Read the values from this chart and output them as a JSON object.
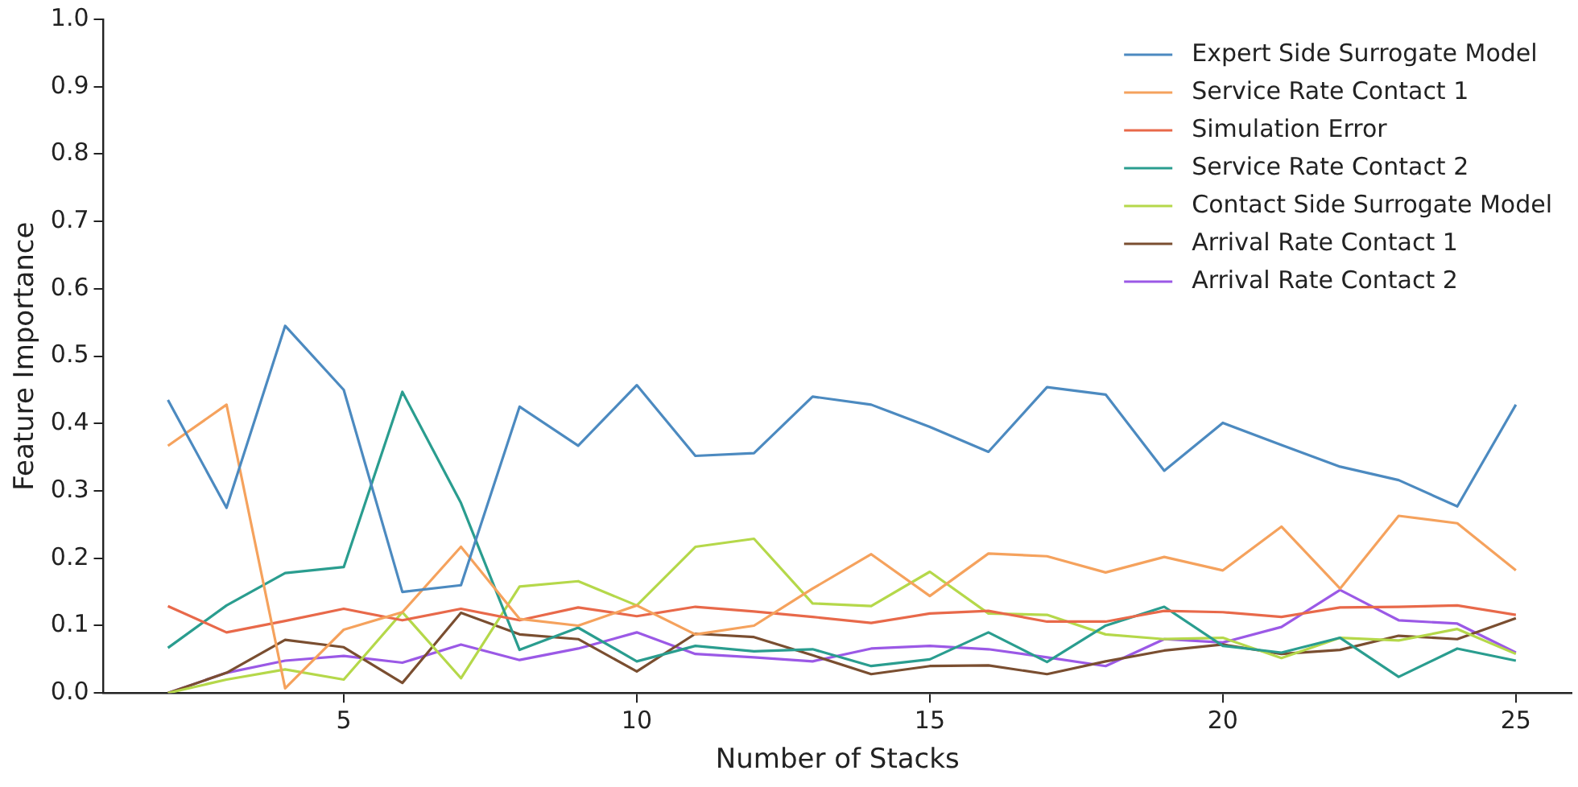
{
  "chart_data": {
    "type": "line",
    "xlabel": "Number of Stacks",
    "ylabel": "Feature Importance",
    "x": [
      2,
      3,
      4,
      5,
      6,
      7,
      8,
      9,
      10,
      11,
      12,
      13,
      14,
      15,
      16,
      17,
      18,
      19,
      20,
      21,
      22,
      23,
      24,
      25
    ],
    "xlim": [
      0.9,
      25.95
    ],
    "xticks": [
      5,
      10,
      15,
      20,
      25
    ],
    "ylim": [
      0,
      1
    ],
    "yticks": [
      {
        "value": 0,
        "label": "0.0"
      },
      0.1,
      0.2,
      0.3,
      0.4,
      0.5,
      0.6,
      0.7,
      0.8,
      0.9,
      {
        "value": 1,
        "label": "1.0"
      }
    ],
    "grid": false,
    "legend": "top right",
    "marker": "none",
    "line_style": "solid",
    "series": [
      {
        "name": "Expert Side Surrogate Model",
        "color": "#4c8ac0",
        "values": [
          0.435,
          0.275,
          0.545,
          0.45,
          0.15,
          0.16,
          0.425,
          0.367,
          0.457,
          0.352,
          0.356,
          0.44,
          0.428,
          0.395,
          0.358,
          0.454,
          0.443,
          0.33,
          0.401,
          0.368,
          0.336,
          0.316,
          0.277,
          0.428
        ]
      },
      {
        "name": "Service Rate Contact 1",
        "color": "#f5a25d",
        "values": [
          0.367,
          0.428,
          0.007,
          0.094,
          0.12,
          0.217,
          0.11,
          0.1,
          0.13,
          0.087,
          0.1,
          0.155,
          0.206,
          0.144,
          0.207,
          0.203,
          0.179,
          0.202,
          0.182,
          0.247,
          0.155,
          0.263,
          0.252,
          0.182
        ]
      },
      {
        "name": "Simulation Error",
        "color": "#e8694a",
        "values": [
          0.129,
          0.09,
          0.107,
          0.125,
          0.108,
          0.125,
          0.108,
          0.127,
          0.114,
          0.128,
          0.121,
          0.113,
          0.104,
          0.118,
          0.122,
          0.106,
          0.106,
          0.122,
          0.12,
          0.113,
          0.127,
          0.128,
          0.13,
          0.116
        ]
      },
      {
        "name": "Service Rate Contact 2",
        "color": "#2a9d8f",
        "values": [
          0.067,
          0.13,
          0.178,
          0.187,
          0.447,
          0.282,
          0.064,
          0.097,
          0.047,
          0.07,
          0.062,
          0.065,
          0.04,
          0.05,
          0.09,
          0.046,
          0.1,
          0.128,
          0.07,
          0.06,
          0.082,
          0.024,
          0.066,
          0.048
        ]
      },
      {
        "name": "Contact Side Surrogate Model",
        "color": "#b5d84a",
        "values": [
          0,
          0.02,
          0.035,
          0.02,
          0.12,
          0.022,
          0.158,
          0.166,
          0.13,
          0.217,
          0.229,
          0.133,
          0.129,
          0.18,
          0.118,
          0.116,
          0.087,
          0.08,
          0.082,
          0.052,
          0.082,
          0.078,
          0.095,
          0.058
        ]
      },
      {
        "name": "Arrival Rate Contact 1",
        "color": "#7a4e30",
        "values": [
          0,
          0.03,
          0.079,
          0.068,
          0.015,
          0.119,
          0.087,
          0.08,
          0.032,
          0.088,
          0.083,
          0.056,
          0.028,
          0.04,
          0.041,
          0.028,
          0.047,
          0.063,
          0.072,
          0.058,
          0.064,
          0.085,
          0.08,
          0.111
        ]
      },
      {
        "name": "Arrival Rate Contact 2",
        "color": "#9b59e6",
        "values": [
          0,
          0.03,
          0.048,
          0.055,
          0.045,
          0.072,
          0.049,
          0.066,
          0.09,
          0.058,
          0.053,
          0.047,
          0.066,
          0.07,
          0.065,
          0.053,
          0.04,
          0.08,
          0.075,
          0.098,
          0.153,
          0.108,
          0.103,
          0.06
        ]
      }
    ]
  }
}
